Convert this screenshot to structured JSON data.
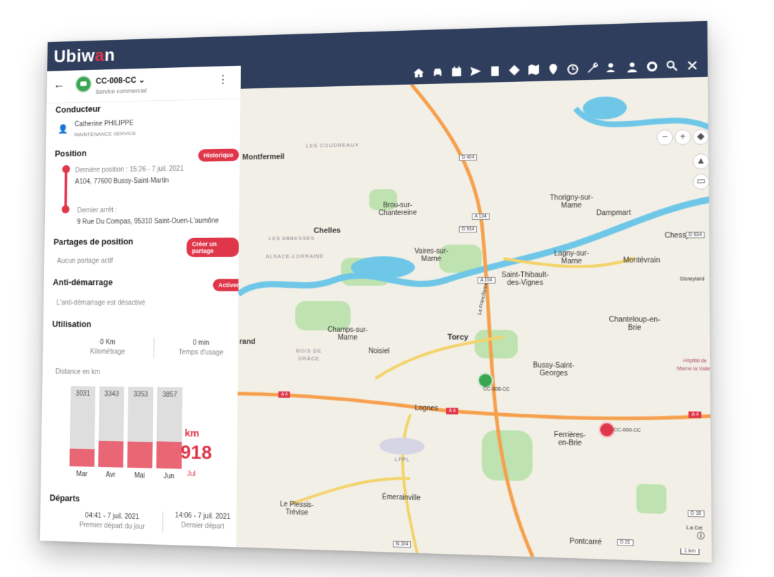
{
  "app": {
    "logo_prefix": "Ubiw",
    "logo_accent": "a",
    "logo_suffix": "n"
  },
  "toolbar": {
    "icons": [
      "home-icon",
      "car-icon",
      "calendar-icon",
      "send-icon",
      "clipboard-icon",
      "diamond-route-icon",
      "map-icon",
      "pin-icon",
      "alarm-icon",
      "wrench-icon",
      "driver-icon",
      "person-icon",
      "gear-icon",
      "search-icon",
      "close-icon"
    ]
  },
  "vehicle": {
    "id": "CC-008-CC",
    "service": "Service commercial"
  },
  "driver": {
    "section": "Conducteur",
    "name": "Catherine PHILIPPE",
    "dept": "MAINTENANCE SERVICE"
  },
  "position": {
    "section": "Position",
    "history_button": "Historique",
    "last_position_label": "Dernière position : 15:26 - 7 juil. 2021",
    "last_position_address": "A104, 77600 Bussy-Saint-Martin",
    "last_stop_label": "Dernier arrêt :",
    "last_stop_address": "9 Rue Du Compas, 95310 Saint-Ouen-L'aumône"
  },
  "sharing": {
    "section": "Partages de position",
    "button": "Créer un partage",
    "status": "Aucun partage actif"
  },
  "immobilizer": {
    "section": "Anti-démarrage",
    "button": "Activer",
    "status": "L'anti-démarrage est désactivé"
  },
  "usage": {
    "section": "Utilisation",
    "km_value": "0 Km",
    "km_label": "Kilométrage",
    "time_value": "0 min",
    "time_label": "Temps d'usage",
    "distance_label": "Distance en km"
  },
  "chart_data": {
    "type": "bar",
    "categories": [
      "Mar",
      "Avr",
      "Mai",
      "Jun"
    ],
    "values": [
      3031,
      3343,
      3353,
      3857
    ],
    "fill_fraction": [
      0.22,
      0.32,
      0.32,
      0.33
    ],
    "current": {
      "unit": "km",
      "value": "918",
      "month": "Jul"
    }
  },
  "departures": {
    "section": "Départs",
    "first_time": "04:41 - 7 juil. 2021",
    "first_label": "Premier départ du jour",
    "last_time": "14:06 - 7 juil. 2021",
    "last_label": "Dernier départ"
  },
  "map": {
    "places": [
      "Montfermeil",
      "LES COUDREAUX",
      "Brou-sur-Chantereine",
      "Chelles",
      "LES ABBESSES",
      "ALSACE-LORRAINE",
      "Vaires-sur-Marne",
      "Thorigny-sur-Marne",
      "Dampmart",
      "Chessy",
      "Lagny-sur-Marne",
      "Montévrain",
      "Saint-Thibault-des-Vignes",
      "Disneyland",
      "Chanteloup-en-Brie",
      "Champs-sur-Marne",
      "BOIS DE GRÂCE",
      "Noisiel",
      "Torcy",
      "Bussy-Saint-Georges",
      "Hôpital de Marne la Vallée",
      "Lognes",
      "Ferrières-en-Brie",
      "LFPL",
      "Émerainville",
      "Le Plessis-Trévise",
      "Pontcarré",
      "rand",
      "La Dé",
      "La Francilienne"
    ],
    "roads": [
      "D 404",
      "A 104",
      "D 934",
      "A 104",
      "D 934",
      "A 4",
      "A 4",
      "A 4",
      "N 104",
      "D 21",
      "D 18"
    ],
    "markers": [
      {
        "label": "CC-008-CC",
        "color": "#3aa552"
      },
      {
        "label": "CC-000-CC",
        "color": "#e0364a"
      }
    ],
    "scale": "1 km",
    "colors": {
      "water": "#6fc7e8",
      "park": "#bfe3b0",
      "motorway": "#f6a04d",
      "main_road": "#f3d36a",
      "land": "#f2efe6"
    }
  }
}
